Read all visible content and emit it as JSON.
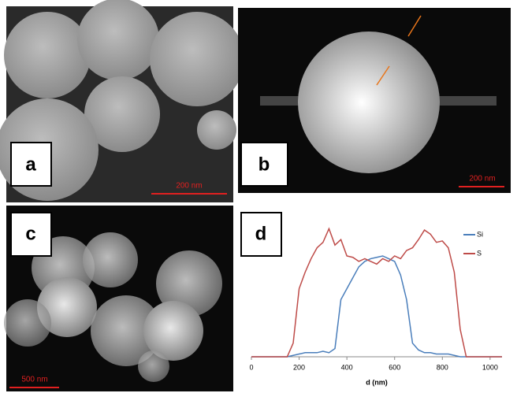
{
  "panels": [
    {
      "label": "a",
      "scale_bar": "200 nm"
    },
    {
      "label": "b",
      "scale_bar": "200 nm"
    },
    {
      "label": "c",
      "scale_bar": "500 nm"
    },
    {
      "label": "d"
    }
  ],
  "chart_data": {
    "type": "line",
    "xlabel": "d (nm)",
    "x": [
      0,
      25,
      50,
      75,
      100,
      125,
      150,
      175,
      200,
      225,
      250,
      275,
      300,
      325,
      350,
      375,
      400,
      425,
      450,
      475,
      500,
      525,
      550,
      575,
      600,
      625,
      650,
      675,
      700,
      725,
      750,
      775,
      800,
      825,
      850,
      875,
      900,
      925,
      950,
      975,
      1000,
      1025,
      1050
    ],
    "series": [
      {
        "name": "Si",
        "color": "#4a7ebb",
        "values": [
          0,
          0,
          0,
          0,
          0,
          0,
          0,
          1,
          2,
          3,
          3,
          3,
          4,
          3,
          6,
          42,
          50,
          58,
          66,
          70,
          72,
          73,
          74,
          72,
          70,
          60,
          42,
          10,
          5,
          3,
          3,
          2,
          2,
          2,
          1,
          0,
          0,
          0,
          0,
          0,
          0,
          0,
          0
        ]
      },
      {
        "name": "S",
        "color": "#be4b48",
        "values": [
          0,
          0,
          0,
          0,
          0,
          0,
          0,
          10,
          50,
          62,
          72,
          80,
          84,
          94,
          82,
          86,
          74,
          73,
          70,
          72,
          70,
          68,
          72,
          70,
          74,
          72,
          78,
          80,
          86,
          93,
          90,
          84,
          85,
          80,
          62,
          20,
          0,
          0,
          0,
          0,
          0,
          0,
          0
        ]
      }
    ],
    "xlim": [
      0,
      1050
    ],
    "xticks": [
      0,
      200,
      400,
      600,
      800,
      1000
    ],
    "ylim": [
      0,
      100
    ]
  }
}
